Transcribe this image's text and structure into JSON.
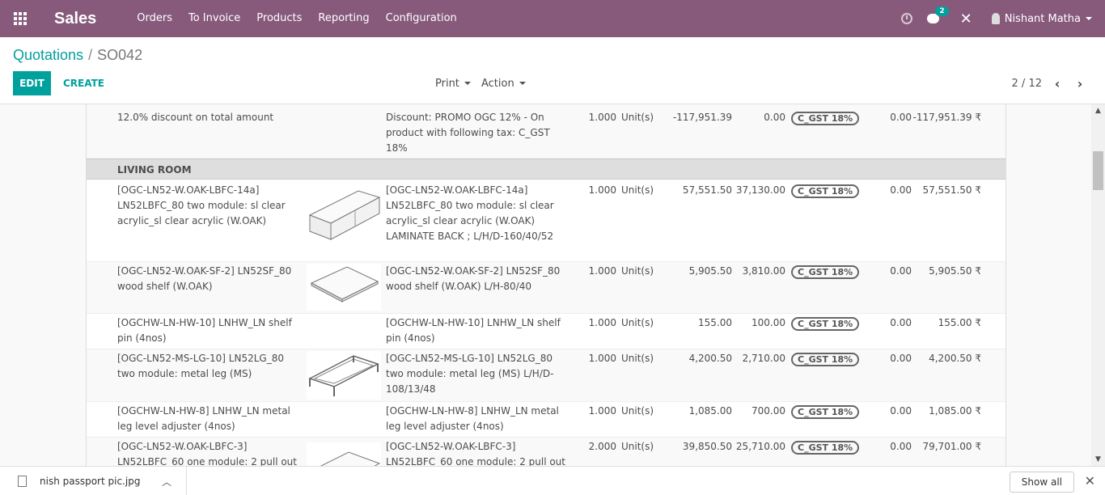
{
  "app": {
    "brand": "Sales"
  },
  "nav": {
    "menu": [
      "Orders",
      "To Invoice",
      "Products",
      "Reporting",
      "Configuration"
    ],
    "messages_badge": "2",
    "user": "Nishant Matha"
  },
  "breadcrumb": {
    "parent": "Quotations",
    "separator": "/",
    "current": "SO042"
  },
  "toolbar": {
    "edit": "EDIT",
    "create": "CREATE",
    "print": "Print",
    "action": "Action"
  },
  "pager": {
    "value": "2 / 12"
  },
  "lines": {
    "discount_line": {
      "product": "12.0% discount on total amount",
      "description": "Discount: PROMO OGC 12% - On product with following tax: C_GST 18%",
      "qty": "1.000",
      "uom": "Unit(s)",
      "price": "-117,951.39",
      "cost": "0.00",
      "tax": "C_GST 18%",
      "discount": "0.00",
      "subtotal": "-117,951.39 ₹"
    },
    "section": "LIVING ROOM",
    "items": [
      {
        "product": "[OGC-LN52-W.OAK-LBFC-14a] LN52LBFC_80 two module: sl clear acrylic_sl clear acrylic (W.OAK)",
        "description": "[OGC-LN52-W.OAK-LBFC-14a] LN52LBFC_80 two module: sl clear acrylic_sl clear acrylic (W.OAK) LAMINATE BACK ; L/H/D-160/40/52",
        "qty": "1.000",
        "uom": "Unit(s)",
        "price": "57,551.50",
        "cost": "37,130.00",
        "tax": "C_GST 18%",
        "discount": "0.00",
        "subtotal": "57,551.50 ₹"
      },
      {
        "product": "[OGC-LN52-W.OAK-SF-2] LN52SF_80 wood shelf (W.OAK)",
        "description": "[OGC-LN52-W.OAK-SF-2] LN52SF_80 wood shelf (W.OAK) L/H-80/40",
        "qty": "1.000",
        "uom": "Unit(s)",
        "price": "5,905.50",
        "cost": "3,810.00",
        "tax": "C_GST 18%",
        "discount": "0.00",
        "subtotal": "5,905.50 ₹"
      },
      {
        "product": "[OGCHW-LN-HW-10] LNHW_LN shelf pin (4nos)",
        "description": "[OGCHW-LN-HW-10] LNHW_LN shelf pin (4nos)",
        "qty": "1.000",
        "uom": "Unit(s)",
        "price": "155.00",
        "cost": "100.00",
        "tax": "C_GST 18%",
        "discount": "0.00",
        "subtotal": "155.00 ₹"
      },
      {
        "product": "[OGC-LN52-MS-LG-10] LN52LG_80 two module: metal leg (MS)",
        "description": "[OGC-LN52-MS-LG-10] LN52LG_80 two module: metal leg (MS) L/H/D-108/13/48",
        "qty": "1.000",
        "uom": "Unit(s)",
        "price": "4,200.50",
        "cost": "2,710.00",
        "tax": "C_GST 18%",
        "discount": "0.00",
        "subtotal": "4,200.50 ₹"
      },
      {
        "product": "[OGCHW-LN-HW-8] LNHW_LN metal leg level adjuster (4nos)",
        "description": "[OGCHW-LN-HW-8] LNHW_LN metal leg level adjuster (4nos)",
        "qty": "1.000",
        "uom": "Unit(s)",
        "price": "1,085.00",
        "cost": "700.00",
        "tax": "C_GST 18%",
        "discount": "0.00",
        "subtotal": "1,085.00 ₹"
      },
      {
        "product": "[OGC-LN52-W.OAK-LBFC-3] LN52LBFC_60 one module: 2 pull out",
        "description": "[OGC-LN52-W.OAK-LBFC-3] LN52LBFC_60 one module: 2 pull out",
        "qty": "2.000",
        "uom": "Unit(s)",
        "price": "39,850.50",
        "cost": "25,710.00",
        "tax": "C_GST 18%",
        "discount": "0.00",
        "subtotal": "79,701.00 ₹"
      }
    ]
  },
  "download": {
    "file": "nish passport pic.jpg",
    "show_all": "Show all"
  }
}
